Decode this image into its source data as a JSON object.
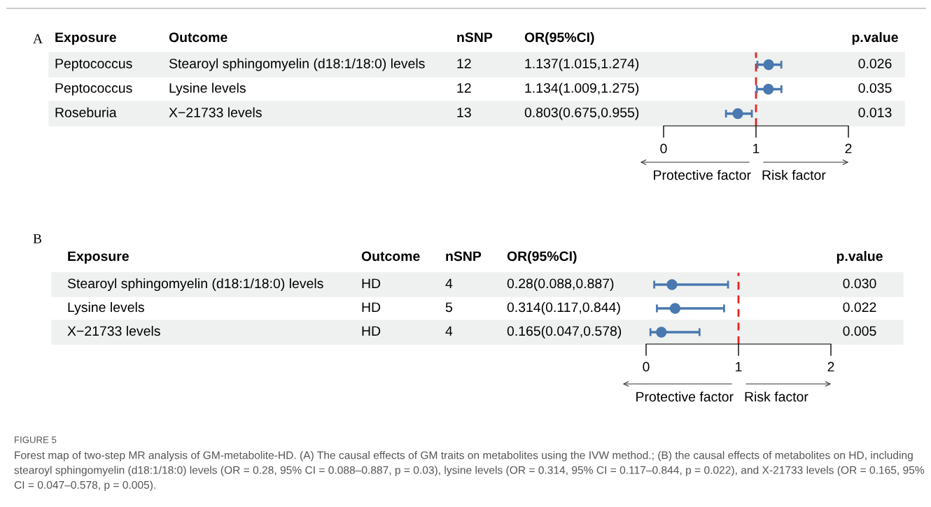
{
  "chart_data": [
    {
      "type": "scatter",
      "orientation": "horizontal",
      "categories": [
        "Peptococcus",
        "Peptococcus",
        "Roseburia"
      ],
      "series": [
        {
          "color": "#4a78b0",
          "values": [
            1.137,
            1.134,
            0.803
          ],
          "errors": [
            [
              1.015,
              1.274
            ],
            [
              1.009,
              1.275
            ],
            [
              0.675,
              0.955
            ]
          ]
        }
      ],
      "xlim": [
        0,
        2
      ],
      "xticks": [
        0,
        1,
        2
      ],
      "marker": "circle",
      "grid": false,
      "legend": false,
      "tick_labels": "x",
      "ref_lines": [
        {
          "axis": "x",
          "value": 1,
          "color": "#e8231f",
          "line_style": "dashed"
        }
      ],
      "annotations": [
        "A",
        "Exposure",
        "Outcome",
        "nSNP",
        "OR(95%CI)",
        "p.value",
        "Stearoyl sphingomyelin (d18:1/18:0) levels",
        "12",
        "1.137(1.015,1.274)",
        "0.026",
        "Lysine levels",
        "12",
        "1.134(1.009,1.275)",
        "0.035",
        "X−21733 levels",
        "13",
        "0.803(0.675,0.955)",
        "0.013",
        "Protective factor",
        "Risk factor"
      ]
    },
    {
      "type": "scatter",
      "orientation": "horizontal",
      "categories": [
        "Stearoyl sphingomyelin (d18:1/18:0) levels",
        "Lysine levels",
        "X−21733 levels"
      ],
      "series": [
        {
          "color": "#4a78b0",
          "values": [
            0.28,
            0.314,
            0.165
          ],
          "errors": [
            [
              0.088,
              0.887
            ],
            [
              0.117,
              0.844
            ],
            [
              0.047,
              0.578
            ]
          ]
        }
      ],
      "xlim": [
        0,
        2
      ],
      "xticks": [
        0,
        1,
        2
      ],
      "marker": "circle",
      "grid": false,
      "legend": false,
      "tick_labels": "x",
      "ref_lines": [
        {
          "axis": "x",
          "value": 1,
          "color": "#e8231f",
          "line_style": "dashed"
        }
      ],
      "annotations": [
        "B",
        "Exposure",
        "Outcome",
        "nSNP",
        "OR(95%CI)",
        "p.value",
        "HD",
        "4",
        "0.28(0.088,0.887)",
        "0.030",
        "HD",
        "5",
        "0.314(0.117,0.844)",
        "0.022",
        "HD",
        "4",
        "0.165(0.047,0.578)",
        "0.005",
        "Protective factor",
        "Risk factor",
        "FIGURE 5",
        "Forest map of two-step MR analysis of GM-metabolite-HD. (A) The causal effects of GM traits on metabolites using the IVW method.; (B) the causal effects of metabolites on HD, including stearoyl sphingomyelin (d18:1/18:0) levels (OR = 0.28, 95% CI = 0.088–0.887, p = 0.03), lysine levels (OR = 0.314, 95% CI = 0.117–0.844, p = 0.022), and X-21733 levels (OR = 0.165, 95% CI = 0.047–0.578, p = 0.005)."
      ]
    }
  ]
}
